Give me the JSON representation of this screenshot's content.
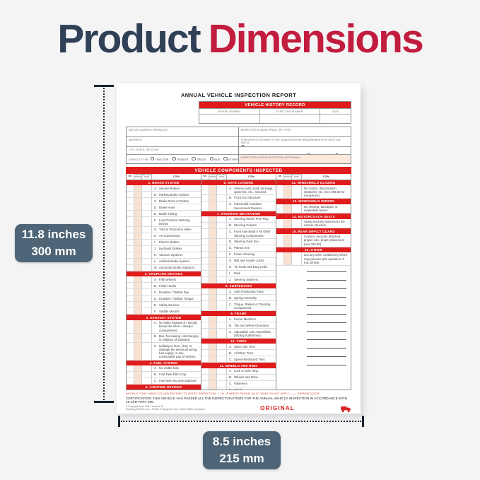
{
  "title": {
    "word1": "Product",
    "word2": "Dimensions"
  },
  "dimensions": {
    "height_in": "11.8 inches",
    "height_mm": "300 mm",
    "width_in": "8.5 inches",
    "width_mm": "215 mm"
  },
  "colors": {
    "accent_red": "#e01b1b",
    "title_navy": "#304056",
    "title_red": "#c21c3e",
    "dim_label_bg": "#4e6577",
    "needs_repair_column": "#f9e2d2",
    "agency_field_bg": "#fce8dc"
  },
  "form": {
    "title": "ANNUAL VEHICLE INSPECTION REPORT",
    "history": {
      "title": "VEHICLE HISTORY RECORD",
      "columns": [
        "REPORT NUMBER",
        "FLEET UNIT NUMBER",
        "DATE"
      ]
    },
    "carrier": {
      "operator": "MOTOR CARRIER OPERATOR",
      "address": "ADDRESS",
      "city": "CITY, STATE, ZIP CODE"
    },
    "vehicle_type": {
      "label": "VEHICLE TYPE:",
      "options": [
        "TRACTOR",
        "TRAILER",
        "TRUCK",
        "BUS",
        "(OTHER)"
      ]
    },
    "inspector": {
      "name": "INSPECTOR'S NAME (PRINT OR TYPE)",
      "qualification": "THIS INSPECTOR MEETS THE QUALIFICATION REQUIREMENTS IN SECTION 396.19",
      "qualification_option": "YES",
      "identification": "VEHICLE IDENTIFICATION (LIST AND COMPLETE)",
      "identification_options": [
        "LIC. PLATE NO.",
        "VIN",
        "(OTHER)"
      ],
      "agency": "INSPECTION AGENCY/LOCATION (OPTIONAL)"
    },
    "components_header": "VEHICLE COMPONENTS INSPECTED",
    "col_headers": [
      "OK",
      "NEEDS REPAIR",
      "REPAIRED DATE",
      "ITEM"
    ],
    "columns": [
      {
        "sections": [
          {
            "title": "1. BRAKE SYSTEM",
            "items": [
              {
                "k": "A.",
                "t": "Service Brakes"
              },
              {
                "k": "B.",
                "t": "Parking Brake System"
              },
              {
                "k": "C.",
                "t": "Brake Drum or Rotors"
              },
              {
                "k": "D.",
                "t": "Brake Hose"
              },
              {
                "k": "E.",
                "t": "Brake Tubing"
              },
              {
                "k": "F.",
                "t": "Low Pressure Warning Device"
              },
              {
                "k": "G.",
                "t": "Tractor Protection Valve"
              },
              {
                "k": "H.",
                "t": "Air Compressor"
              },
              {
                "k": "I.",
                "t": "Electric Brakes"
              },
              {
                "k": "J.",
                "t": "Hydraulic Brakes"
              },
              {
                "k": "K.",
                "t": "Vacuum Systems"
              },
              {
                "k": "L.",
                "t": "Antilock Brake System"
              },
              {
                "k": "M.",
                "t": "Automatic Brake Adjusters"
              }
            ]
          },
          {
            "title": "2. COUPLING DEVICES",
            "items": [
              {
                "k": "A.",
                "t": "Fifth Wheels"
              },
              {
                "k": "B.",
                "t": "Pintle Hooks"
              },
              {
                "k": "C.",
                "t": "Drawbar / Towbar Eye"
              },
              {
                "k": "D.",
                "t": "Drawbar / Towbar Tongue"
              },
              {
                "k": "E.",
                "t": "Safety Devices"
              },
              {
                "k": "F.",
                "t": "Saddle Mounts"
              }
            ]
          },
          {
            "title": "3. EXHAUST SYSTEM",
            "items": [
              {
                "k": "A.",
                "t": "No leaks forward of / directly below the driver / sleeper compartment."
              },
              {
                "k": "B.",
                "t": "Bus. No leaking / discharging in violation of standard."
              },
              {
                "k": "C.",
                "t": "Unlikely to burn, char, or damage the electrical wiring, fuel supply, or any combustible part of vehicle."
              }
            ]
          },
          {
            "title": "4. FUEL SYSTEM",
            "items": [
              {
                "k": "A.",
                "t": "No visible leak."
              },
              {
                "k": "B.",
                "t": "Fuel Tank Filler Cap"
              },
              {
                "k": "C.",
                "t": "Fuel tank securely attached."
              }
            ]
          },
          {
            "title": "5. LIGHTING DEVICES",
            "items": [
              {
                "t": "All required lights / reflectors operable."
              }
            ]
          }
        ]
      },
      {
        "sections": [
          {
            "title": "6. SAFE LOADING",
            "items": [
              {
                "k": "A.",
                "t": "Vehicle parts, load, dunnage, spare tire, etc., secured."
              },
              {
                "k": "B.",
                "t": "Front End Structure"
              },
              {
                "k": "C.",
                "t": "Intermodal Container Securement Devices"
              }
            ]
          },
          {
            "title": "7. STEERING MECHANISM",
            "items": [
              {
                "k": "A.",
                "t": "Steering Wheel Free Play"
              },
              {
                "k": "B.",
                "t": "Steering Column"
              },
              {
                "k": "C.",
                "t": "Front Axle Beam / All Other Steering Components"
              },
              {
                "k": "D.",
                "t": "Steering Gear Box"
              },
              {
                "k": "E.",
                "t": "Pitman Arm"
              },
              {
                "k": "F.",
                "t": "Power Steering"
              },
              {
                "k": "G.",
                "t": "Ball and Socket Joints"
              },
              {
                "k": "H.",
                "t": "Tie Rods and Drag Links"
              },
              {
                "k": "I.",
                "t": "Nuts"
              },
              {
                "k": "J.",
                "t": "Steering Systems"
              }
            ]
          },
          {
            "title": "8. SUSPENSION",
            "items": [
              {
                "k": "A.",
                "t": "Axle Positioning Parts"
              },
              {
                "k": "B.",
                "t": "Spring Assembly"
              },
              {
                "k": "C.",
                "t": "Torque, Radius or Tracking Components"
              }
            ]
          },
          {
            "title": "9. FRAME",
            "items": [
              {
                "k": "A.",
                "t": "Frame Members"
              },
              {
                "k": "B.",
                "t": "Tire and Wheel Clearance"
              },
              {
                "k": "C.",
                "t": "Adjustable Axle Assemblies (Sliding Subframes)"
              }
            ]
          },
          {
            "title": "10. TIRES",
            "items": [
              {
                "k": "A.",
                "t": "Steer Axle Tires"
              },
              {
                "k": "B.",
                "t": "All Other Tires"
              },
              {
                "k": "C.",
                "t": "Speed-Restricted Tires"
              }
            ]
          },
          {
            "title": "11. WHEELS AND RIMS",
            "items": [
              {
                "k": "A.",
                "t": "Lock or Side Ring"
              },
              {
                "k": "B.",
                "t": "Wheels and Rims"
              },
              {
                "k": "C.",
                "t": "Fasteners"
              },
              {
                "k": "D.",
                "t": "Welds"
              }
            ]
          }
        ]
      },
      {
        "sections": [
          {
            "title": "12. WINDSHIELD GLAZING",
            "items": [
              {
                "t": "No cracks, discoloration, obstacles, etc. (see 393.60 for exceptions)."
              }
            ]
          },
          {
            "title": "13. WINDSHIELD WIPERS",
            "items": [
              {
                "t": "No missing, damaged, or inoperable wipers."
              }
            ]
          },
          {
            "title": "14. MOTORCOACH SEATS",
            "items": [
              {
                "t": "Seats securely fastened to the vehicle structure."
              }
            ]
          },
          {
            "title": "15. REAR IMPACT GUARD",
            "items": [
              {
                "t": "In place, securely attached, proper size, proper placement (see 393.86)."
              }
            ]
          },
          {
            "title": "16. OTHER",
            "items": [
              {
                "t": "List any other condition(s) which may prevent safe operation of this vehicle."
              },
              {
                "blank": true
              },
              {
                "blank": true
              },
              {
                "blank": true
              },
              {
                "blank": true
              },
              {
                "blank": true
              },
              {
                "blank": true
              },
              {
                "blank": true
              },
              {
                "blank": true
              },
              {
                "blank": true
              },
              {
                "blank": true
              },
              {
                "blank": true
              },
              {
                "blank": true
              }
            ]
          }
        ]
      }
    ],
    "footer": {
      "instructions": "INSTRUCTIONS: MARK COLUMN ENTRIES TO VERIFY INSPECTION:   ✓  OK,   ✗  NEEDS REPAIR,   NA  IF ITEMS DO NOT APPLY,   ____  REPAIRED DATE",
      "certification": "CERTIFICATION: THIS VEHICLE HAS PASSED ALL THE INSPECTION ITEMS FOR THE ANNUAL VEHICLE INSPECTION IN ACCORDANCE WITH 49 CFR PART 396.",
      "copyright1": "© Copyright Buck USA • Tomball, TX",
      "copyright2": "BuckSuppliesUSA.com • Printed & Designed in the United States of America",
      "original": "ORIGINAL"
    }
  }
}
